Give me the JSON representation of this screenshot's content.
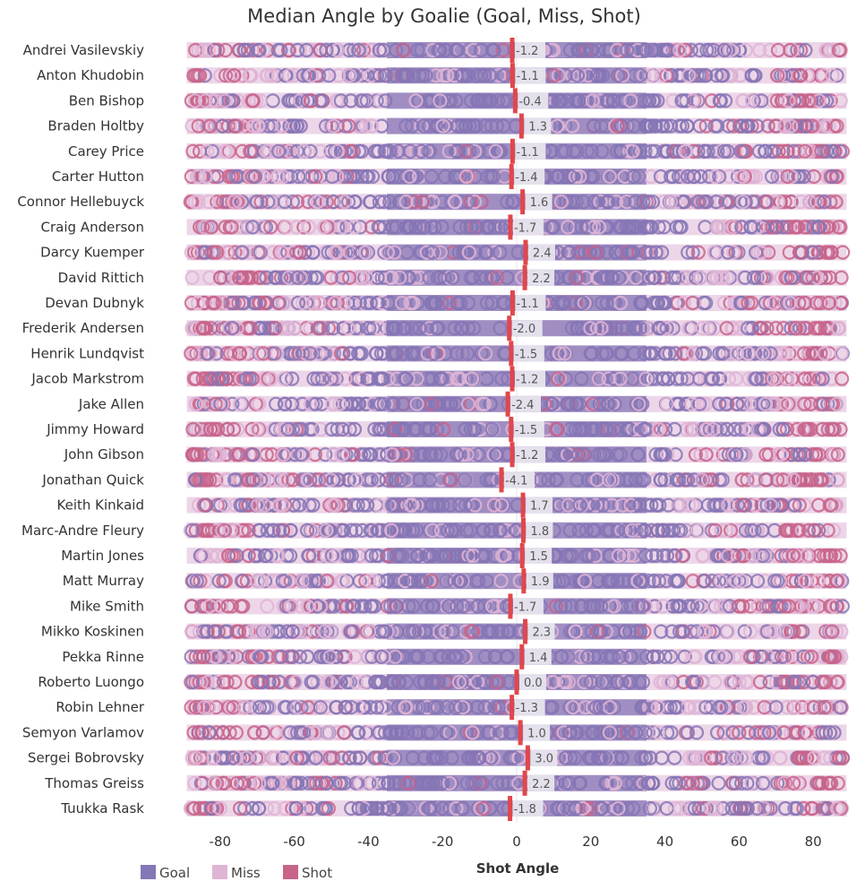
{
  "chart_data": {
    "type": "scatter",
    "title": "Median Angle by Goalie (Goal, Miss, Shot)",
    "xlabel": "Shot Angle",
    "ylabel": "",
    "xlim": [
      -90,
      90
    ],
    "xticks": [
      -80,
      -60,
      -40,
      -20,
      0,
      20,
      40,
      60,
      80
    ],
    "grid": false,
    "legend": {
      "placement": "bottom-left",
      "entries": [
        {
          "name": "Goal",
          "color": "#8576b5"
        },
        {
          "name": "Miss",
          "color": "#dfb5d6"
        },
        {
          "name": "Shot",
          "color": "#c8648a"
        }
      ]
    },
    "median_marker_color": "#e0474c",
    "categories": [
      "Andrei Vasilevskiy",
      "Anton Khudobin",
      "Ben Bishop",
      "Braden Holtby",
      "Carey Price",
      "Carter Hutton",
      "Connor Hellebuyck",
      "Craig Anderson",
      "Darcy Kuemper",
      "David Rittich",
      "Devan Dubnyk",
      "Frederik Andersen",
      "Henrik Lundqvist",
      "Jacob Markstrom",
      "Jake Allen",
      "Jimmy Howard",
      "John Gibson",
      "Jonathan Quick",
      "Keith Kinkaid",
      "Marc-Andre Fleury",
      "Martin Jones",
      "Matt Murray",
      "Mike Smith",
      "Mikko Koskinen",
      "Pekka Rinne",
      "Roberto Luongo",
      "Robin Lehner",
      "Semyon Varlamov",
      "Sergei Bobrovsky",
      "Thomas Greiss",
      "Tuukka Rask"
    ],
    "median_angle": [
      -1.2,
      -1.1,
      -0.4,
      1.3,
      -1.1,
      -1.4,
      1.6,
      -1.7,
      2.4,
      2.2,
      -1.1,
      -2.0,
      -1.5,
      -1.2,
      -2.4,
      -1.5,
      -1.2,
      -4.1,
      1.7,
      1.8,
      1.5,
      1.9,
      -1.7,
      2.3,
      1.4,
      0.0,
      -1.3,
      1.0,
      3.0,
      2.2,
      -1.8
    ],
    "median_labels": [
      "-1.2",
      "-1.1",
      "-0.4",
      "1.3",
      "-1.1",
      "-1.4",
      "1.6",
      "-1.7",
      "2.4",
      "2.2",
      "-1.1",
      "-2.0",
      "-1.5",
      "-1.2",
      "-2.4",
      "-1.5",
      "-1.2",
      "-4.1",
      "1.7",
      "1.8",
      "1.5",
      "1.9",
      "-1.7",
      "2.3",
      "1.4",
      "0.0",
      "-1.3",
      "1.0",
      "3.0",
      "2.2",
      "-1.8"
    ]
  }
}
